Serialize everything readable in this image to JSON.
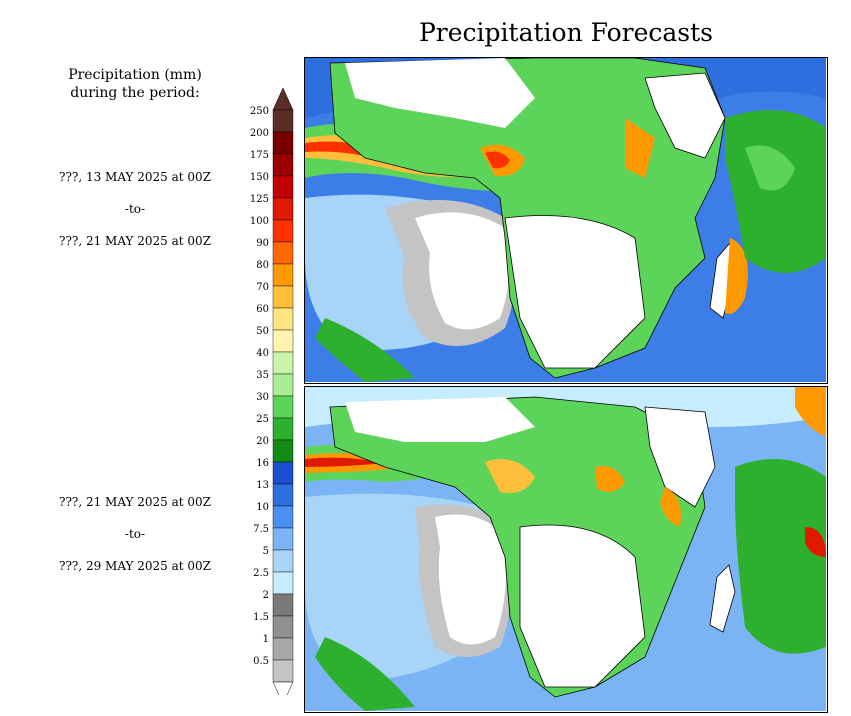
{
  "title": "Precipitation Forecasts",
  "legend": {
    "heading_line1": "Precipitation (mm)",
    "heading_line2": "during the period:",
    "levels": [
      "250",
      "200",
      "175",
      "150",
      "125",
      "100",
      "90",
      "80",
      "70",
      "60",
      "50",
      "40",
      "35",
      "30",
      "25",
      "20",
      "16",
      "13",
      "10",
      "7.5",
      "5",
      "2.5",
      "2",
      "1.5",
      "1",
      "0.5"
    ],
    "colors": [
      "#5a2e26",
      "#780000",
      "#9a0000",
      "#c30000",
      "#e01a00",
      "#ff3000",
      "#ff6a00",
      "#ff9900",
      "#ffbf3a",
      "#ffe480",
      "#fff5b0",
      "#c9f5a8",
      "#a7ee95",
      "#5cd45a",
      "#2db02d",
      "#138a13",
      "#1a4fd0",
      "#2e6fe0",
      "#4a90f0",
      "#7ab4f5",
      "#a8d4f8",
      "#c6ecff",
      "#7a7a7a",
      "#909090",
      "#a8a8a8",
      "#c4c4c4"
    ]
  },
  "periods": [
    {
      "start": "???, 13 MAY 2025 at 00Z",
      "sep": "-to-",
      "end": "???, 21 MAY 2025 at 00Z"
    },
    {
      "start": "???, 21 MAY 2025 at 00Z",
      "sep": "-to-",
      "end": "???, 29 MAY 2025 at 00Z"
    }
  ]
}
